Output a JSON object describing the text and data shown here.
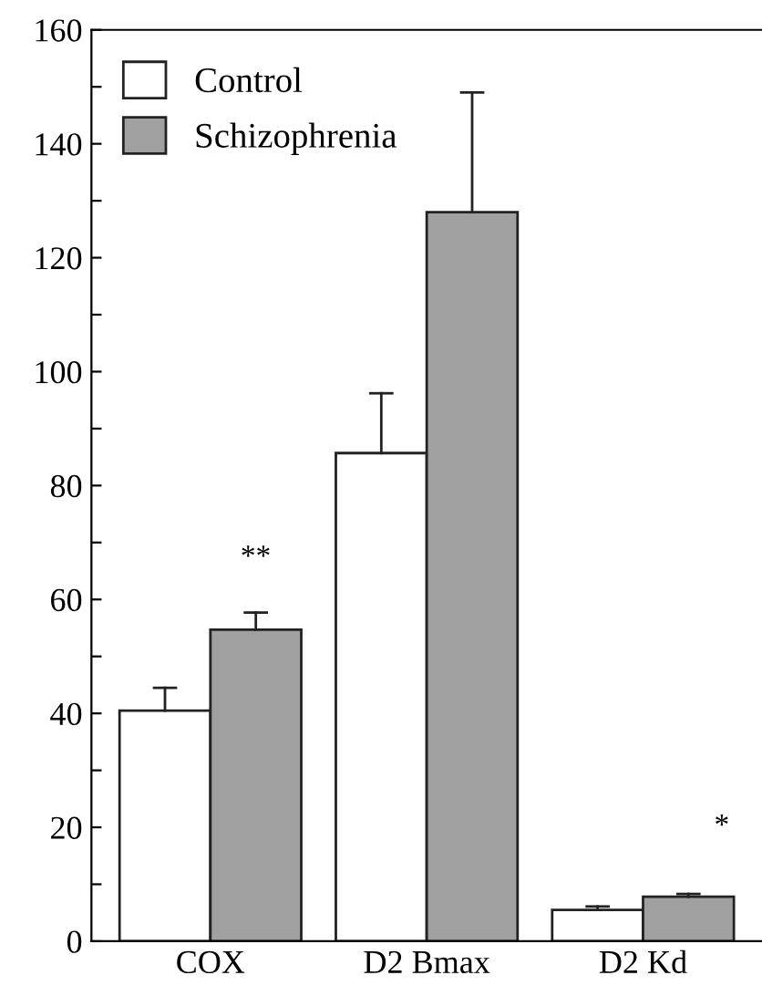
{
  "chart_data": {
    "type": "bar",
    "categories": [
      "COX",
      "D2 Bmax",
      "D2 Kd"
    ],
    "series": [
      {
        "name": "Control",
        "color": "#ffffff",
        "values": [
          40.5,
          85.7,
          5.5
        ],
        "errors": [
          [
            40.5,
            44.5
          ],
          [
            85.7,
            96.2
          ],
          [
            5.5,
            6.1
          ]
        ]
      },
      {
        "name": "Schizophrenia",
        "color": "#a0a0a0",
        "values": [
          54.7,
          128,
          7.8
        ],
        "errors": [
          [
            54.7,
            57.7
          ],
          [
            128,
            149
          ],
          [
            7.8,
            8.3
          ]
        ]
      }
    ],
    "ylim": [
      0,
      160
    ],
    "yticks": [
      0,
      {
        "value": 10,
        "label": null
      },
      20,
      {
        "value": 30,
        "label": null
      },
      40,
      {
        "value": 50,
        "label": null
      },
      60,
      {
        "value": 70,
        "label": null
      },
      80,
      {
        "value": 90,
        "label": null
      },
      100,
      {
        "value": 110,
        "label": null
      },
      120,
      {
        "value": 130,
        "label": null
      },
      140,
      {
        "value": 150,
        "label": null
      },
      160
    ],
    "annotations": [
      "**",
      "*"
    ],
    "legend": "top left",
    "grid": false
  }
}
